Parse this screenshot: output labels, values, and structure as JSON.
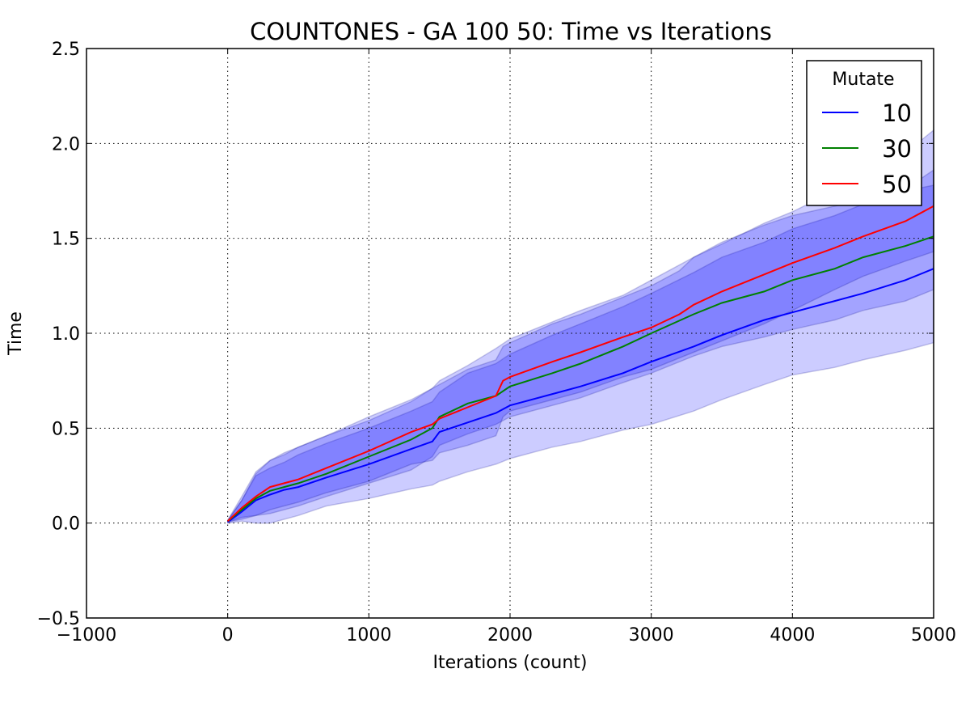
{
  "chart_data": {
    "type": "line",
    "title": "COUNTONES - GA 100 50: Time vs Iterations",
    "xlabel": "Iterations (count)",
    "ylabel": "Time",
    "xlim": [
      -1000,
      5000
    ],
    "ylim": [
      -0.5,
      2.5
    ],
    "xticks": [
      -1000,
      0,
      1000,
      2000,
      3000,
      4000,
      5000
    ],
    "yticks": [
      -0.5,
      0.0,
      0.5,
      1.0,
      1.5,
      2.0,
      2.5
    ],
    "xtick_labels": [
      "−1000",
      "0",
      "1000",
      "2000",
      "3000",
      "4000",
      "5000"
    ],
    "ytick_labels": [
      "−0.5",
      "0.0",
      "0.5",
      "1.0",
      "1.5",
      "2.0",
      "2.5"
    ],
    "grid": true,
    "legend": {
      "title": "Mutate",
      "placement": "top-right"
    },
    "series": [
      {
        "name": "10",
        "color": "#0000ff",
        "band_opacity": 0.2,
        "x": [
          0,
          100,
          200,
          300,
          400,
          500,
          700,
          1000,
          1300,
          1450,
          1500,
          1700,
          1900,
          2000,
          2300,
          2500,
          2800,
          3000,
          3300,
          3500,
          3800,
          4000,
          4300,
          4500,
          4800,
          5000
        ],
        "y": [
          0.005,
          0.06,
          0.12,
          0.15,
          0.175,
          0.19,
          0.24,
          0.31,
          0.39,
          0.43,
          0.48,
          0.53,
          0.58,
          0.62,
          0.68,
          0.72,
          0.79,
          0.85,
          0.93,
          0.99,
          1.07,
          1.11,
          1.17,
          1.21,
          1.28,
          1.34
        ],
        "upper": [
          0.01,
          0.12,
          0.26,
          0.33,
          0.37,
          0.4,
          0.46,
          0.54,
          0.64,
          0.71,
          0.75,
          0.83,
          0.92,
          0.97,
          1.06,
          1.12,
          1.2,
          1.28,
          1.4,
          1.47,
          1.58,
          1.64,
          1.75,
          1.82,
          1.95,
          2.07
        ],
        "lower": [
          0.0,
          0.01,
          0.0,
          0.0,
          0.02,
          0.04,
          0.09,
          0.13,
          0.18,
          0.2,
          0.22,
          0.27,
          0.31,
          0.34,
          0.4,
          0.43,
          0.49,
          0.52,
          0.59,
          0.65,
          0.73,
          0.78,
          0.82,
          0.86,
          0.91,
          0.95
        ]
      },
      {
        "name": "30",
        "color": "#008000",
        "band_opacity": 0.2,
        "x": [
          0,
          100,
          200,
          300,
          400,
          500,
          700,
          1000,
          1300,
          1450,
          1500,
          1700,
          1900,
          2000,
          2300,
          2500,
          2800,
          3000,
          3300,
          3500,
          3800,
          4000,
          4300,
          4500,
          4800,
          5000
        ],
        "y": [
          0.01,
          0.07,
          0.13,
          0.17,
          0.19,
          0.21,
          0.26,
          0.35,
          0.44,
          0.5,
          0.56,
          0.63,
          0.67,
          0.72,
          0.79,
          0.84,
          0.93,
          1.0,
          1.1,
          1.16,
          1.22,
          1.28,
          1.34,
          1.4,
          1.46,
          1.51
        ],
        "upper": [
          0.015,
          0.12,
          0.25,
          0.29,
          0.32,
          0.36,
          0.42,
          0.5,
          0.59,
          0.64,
          0.69,
          0.79,
          0.84,
          0.89,
          0.99,
          1.05,
          1.14,
          1.21,
          1.32,
          1.4,
          1.48,
          1.55,
          1.62,
          1.68,
          1.76,
          1.86
        ],
        "lower": [
          0.005,
          0.03,
          0.04,
          0.05,
          0.07,
          0.09,
          0.14,
          0.21,
          0.28,
          0.35,
          0.41,
          0.47,
          0.52,
          0.56,
          0.62,
          0.66,
          0.74,
          0.79,
          0.88,
          0.93,
          0.98,
          1.02,
          1.07,
          1.12,
          1.17,
          1.23
        ]
      },
      {
        "name": "50",
        "color": "#ff0000",
        "band_opacity": 0.2,
        "x": [
          0,
          100,
          200,
          300,
          400,
          500,
          700,
          1000,
          1300,
          1450,
          1500,
          1700,
          1900,
          1950,
          2000,
          2300,
          2500,
          2800,
          3000,
          3200,
          3300,
          3500,
          3800,
          4000,
          4300,
          4500,
          4800,
          5000
        ],
        "y": [
          0.01,
          0.08,
          0.14,
          0.19,
          0.21,
          0.23,
          0.29,
          0.38,
          0.48,
          0.52,
          0.55,
          0.61,
          0.67,
          0.75,
          0.77,
          0.85,
          0.9,
          0.98,
          1.03,
          1.1,
          1.15,
          1.22,
          1.31,
          1.37,
          1.45,
          1.51,
          1.59,
          1.67
        ],
        "upper": [
          0.015,
          0.14,
          0.27,
          0.33,
          0.36,
          0.4,
          0.46,
          0.56,
          0.65,
          0.71,
          0.73,
          0.81,
          0.86,
          0.93,
          0.95,
          1.05,
          1.1,
          1.19,
          1.25,
          1.33,
          1.4,
          1.48,
          1.57,
          1.62,
          1.67,
          1.7,
          1.75,
          1.78
        ],
        "lower": [
          0.005,
          0.02,
          0.04,
          0.07,
          0.09,
          0.11,
          0.16,
          0.22,
          0.31,
          0.33,
          0.37,
          0.41,
          0.46,
          0.56,
          0.59,
          0.65,
          0.69,
          0.77,
          0.81,
          0.87,
          0.9,
          0.96,
          1.05,
          1.12,
          1.23,
          1.3,
          1.38,
          1.43
        ]
      }
    ]
  }
}
